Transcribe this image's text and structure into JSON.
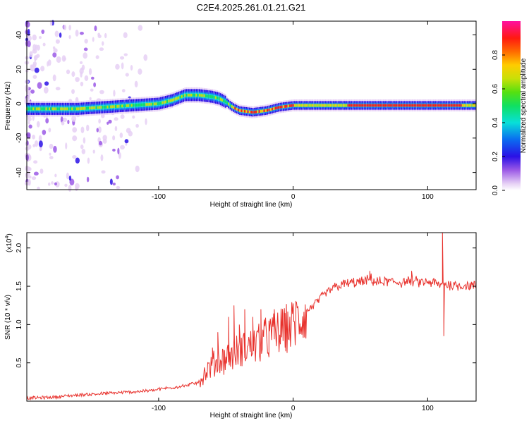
{
  "title": "C2E4.2025.261.01.21.G21",
  "colors": {
    "snr_line": "#e8322d",
    "axis": "#000000",
    "background": "#ffffff"
  },
  "chart_data": [
    {
      "type": "heatmap",
      "xlabel": "Height of straight line (km)",
      "ylabel": "Frequency (Hz)",
      "xlim": [
        -198,
        136
      ],
      "ylim": [
        -50,
        48
      ],
      "x_ticks": [
        {
          "value": -100,
          "label": "-100"
        },
        {
          "value": 0,
          "label": "0"
        },
        {
          "value": 100,
          "label": "100"
        }
      ],
      "y_ticks": [
        {
          "value": -40,
          "label": "-40"
        },
        {
          "value": -20,
          "label": "-20"
        },
        {
          "value": 0,
          "label": "0"
        },
        {
          "value": 20,
          "label": "20"
        },
        {
          "value": 40,
          "label": "40"
        }
      ],
      "center_frequency_trace": [
        [
          -198,
          -3
        ],
        [
          -180,
          -3
        ],
        [
          -160,
          -3
        ],
        [
          -140,
          -2
        ],
        [
          -120,
          -1
        ],
        [
          -100,
          0
        ],
        [
          -90,
          2
        ],
        [
          -80,
          5
        ],
        [
          -70,
          5
        ],
        [
          -60,
          4
        ],
        [
          -55,
          3
        ],
        [
          -50,
          1
        ],
        [
          -45,
          -2
        ],
        [
          -40,
          -4
        ],
        [
          -30,
          -5
        ],
        [
          -20,
          -4
        ],
        [
          -10,
          -2
        ],
        [
          0,
          -1
        ],
        [
          20,
          -1
        ],
        [
          40,
          -1
        ],
        [
          60,
          -1
        ],
        [
          80,
          -1
        ],
        [
          100,
          -1
        ],
        [
          120,
          -1
        ],
        [
          136,
          -1
        ]
      ],
      "colorbar": {
        "label": "Normalized spectral amplitude",
        "range": [
          0.0,
          1.0
        ],
        "ticks": [
          {
            "value": 0.0,
            "label": "0.0"
          },
          {
            "value": 0.2,
            "label": "0.2"
          },
          {
            "value": 0.4,
            "label": "0.4"
          },
          {
            "value": 0.6,
            "label": "0.6"
          },
          {
            "value": 0.8,
            "label": "0.8"
          }
        ]
      }
    },
    {
      "type": "line",
      "xlabel": "Height of straight line (km)",
      "ylabel": "SNR (10 * v/v)",
      "y_multiplier_base": "(x10",
      "y_multiplier_exp": "4",
      "y_multiplier_close": ")",
      "xlim": [
        -198,
        136
      ],
      "ylim": [
        0.0,
        2.2
      ],
      "x_ticks": [
        {
          "value": -100,
          "label": "-100"
        },
        {
          "value": 0,
          "label": "0"
        },
        {
          "value": 100,
          "label": "100"
        }
      ],
      "y_ticks": [
        {
          "value": 0.5,
          "label": "0.5"
        },
        {
          "value": 1.0,
          "label": "1.0"
        },
        {
          "value": 1.5,
          "label": "1.5"
        },
        {
          "value": 2.0,
          "label": "2.0"
        }
      ],
      "series": [
        {
          "name": "SNR",
          "x": [
            -198,
            -180,
            -160,
            -140,
            -120,
            -105,
            -90,
            -80,
            -70,
            -64,
            -58,
            -52,
            -46,
            -40,
            -34,
            -28,
            -22,
            -16,
            -10,
            -4,
            0,
            6,
            12,
            18,
            24,
            30,
            36,
            42,
            48,
            54,
            57,
            62,
            70,
            80,
            88,
            94,
            100,
            106,
            110,
            112,
            114,
            118,
            124,
            130,
            136
          ],
          "y": [
            0.04,
            0.05,
            0.08,
            0.1,
            0.12,
            0.14,
            0.18,
            0.2,
            0.25,
            0.4,
            0.5,
            0.55,
            0.6,
            0.66,
            0.7,
            0.74,
            0.8,
            0.85,
            0.9,
            0.95,
            1.0,
            1.1,
            1.2,
            1.3,
            1.4,
            1.48,
            1.52,
            1.54,
            1.55,
            1.56,
            1.6,
            1.55,
            1.56,
            1.55,
            1.57,
            1.55,
            1.55,
            1.54,
            1.5,
            1.55,
            1.52,
            1.52,
            1.51,
            1.51,
            1.5
          ],
          "spikes": [
            [
              -60,
              0.7
            ],
            [
              -56,
              0.9
            ],
            [
              -48,
              1.1
            ],
            [
              -44,
              1.25
            ],
            [
              -40,
              1.0
            ],
            [
              -36,
              1.2
            ],
            [
              -30,
              1.1
            ],
            [
              -24,
              1.2
            ],
            [
              -18,
              1.05
            ],
            [
              -14,
              1.2
            ],
            [
              -6,
              1.15
            ],
            [
              2,
              1.3
            ],
            [
              57,
              1.7
            ],
            [
              88,
              1.7
            ],
            [
              111,
              2.2
            ],
            [
              112,
              0.85
            ]
          ]
        }
      ]
    }
  ]
}
